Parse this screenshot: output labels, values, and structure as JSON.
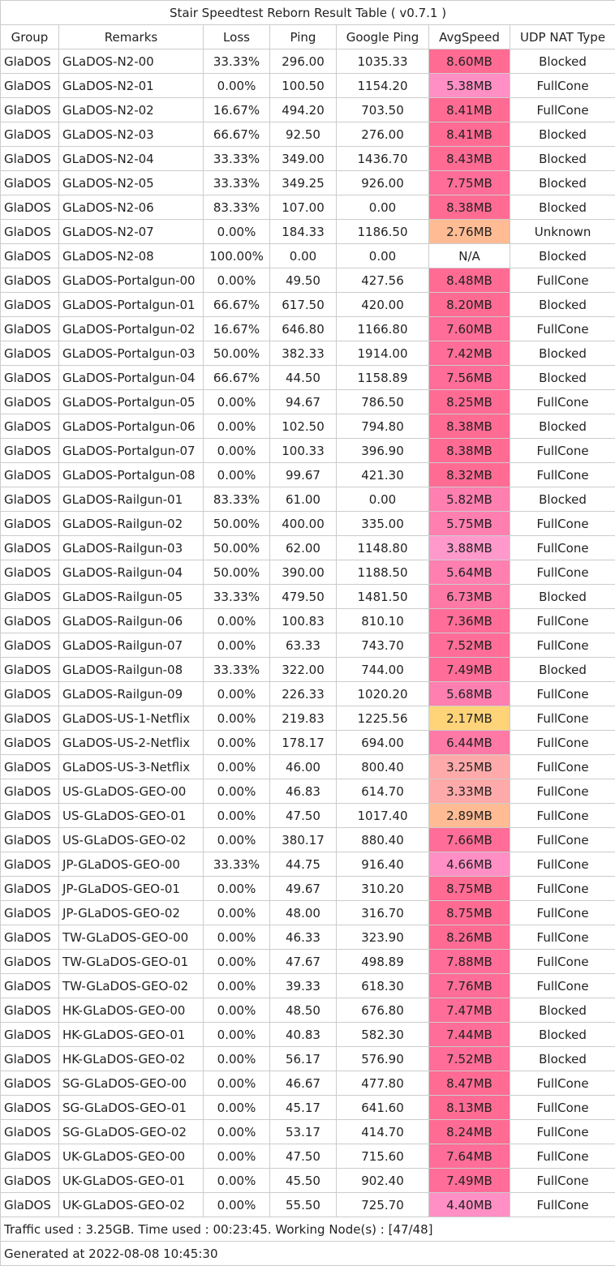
{
  "title": "Stair Speedtest Reborn Result Table ( v0.7.1 )",
  "columns": [
    "Group",
    "Remarks",
    "Loss",
    "Ping",
    "Google Ping",
    "AvgSpeed",
    "UDP NAT Type"
  ],
  "rows": [
    {
      "group": "GlaDOS",
      "remarks": "GLaDOS-N2-00",
      "loss": "33.33%",
      "ping": "296.00",
      "google_ping": "1035.33",
      "avg_speed": "8.60MB",
      "speed_color": "#ff6b93",
      "nat": "Blocked"
    },
    {
      "group": "GlaDOS",
      "remarks": "GLaDOS-N2-01",
      "loss": "0.00%",
      "ping": "100.50",
      "google_ping": "1154.20",
      "avg_speed": "5.38MB",
      "speed_color": "#ff8fc4",
      "nat": "FullCone"
    },
    {
      "group": "GlaDOS",
      "remarks": "GLaDOS-N2-02",
      "loss": "16.67%",
      "ping": "494.20",
      "google_ping": "703.50",
      "avg_speed": "8.41MB",
      "speed_color": "#ff6b93",
      "nat": "FullCone"
    },
    {
      "group": "GlaDOS",
      "remarks": "GLaDOS-N2-03",
      "loss": "66.67%",
      "ping": "92.50",
      "google_ping": "276.00",
      "avg_speed": "8.41MB",
      "speed_color": "#ff6b93",
      "nat": "Blocked"
    },
    {
      "group": "GlaDOS",
      "remarks": "GLaDOS-N2-04",
      "loss": "33.33%",
      "ping": "349.00",
      "google_ping": "1436.70",
      "avg_speed": "8.43MB",
      "speed_color": "#ff6b93",
      "nat": "Blocked"
    },
    {
      "group": "GlaDOS",
      "remarks": "GLaDOS-N2-05",
      "loss": "33.33%",
      "ping": "349.25",
      "google_ping": "926.00",
      "avg_speed": "7.75MB",
      "speed_color": "#ff6d98",
      "nat": "Blocked"
    },
    {
      "group": "GlaDOS",
      "remarks": "GLaDOS-N2-06",
      "loss": "83.33%",
      "ping": "107.00",
      "google_ping": "0.00",
      "avg_speed": "8.38MB",
      "speed_color": "#ff6b93",
      "nat": "Blocked"
    },
    {
      "group": "GlaDOS",
      "remarks": "GLaDOS-N2-07",
      "loss": "0.00%",
      "ping": "184.33",
      "google_ping": "1186.50",
      "avg_speed": "2.76MB",
      "speed_color": "#ffbb94",
      "nat": "Unknown"
    },
    {
      "group": "GlaDOS",
      "remarks": "GLaDOS-N2-08",
      "loss": "100.00%",
      "ping": "0.00",
      "google_ping": "0.00",
      "avg_speed": "N/A",
      "speed_color": "#ffffff",
      "nat": "Blocked"
    },
    {
      "group": "GlaDOS",
      "remarks": "GLaDOS-Portalgun-00",
      "loss": "0.00%",
      "ping": "49.50",
      "google_ping": "427.56",
      "avg_speed": "8.48MB",
      "speed_color": "#ff6b93",
      "nat": "FullCone"
    },
    {
      "group": "GlaDOS",
      "remarks": "GLaDOS-Portalgun-01",
      "loss": "66.67%",
      "ping": "617.50",
      "google_ping": "420.00",
      "avg_speed": "8.20MB",
      "speed_color": "#ff6b93",
      "nat": "Blocked"
    },
    {
      "group": "GlaDOS",
      "remarks": "GLaDOS-Portalgun-02",
      "loss": "16.67%",
      "ping": "646.80",
      "google_ping": "1166.80",
      "avg_speed": "7.60MB",
      "speed_color": "#ff6d98",
      "nat": "FullCone"
    },
    {
      "group": "GlaDOS",
      "remarks": "GLaDOS-Portalgun-03",
      "loss": "50.00%",
      "ping": "382.33",
      "google_ping": "1914.00",
      "avg_speed": "7.42MB",
      "speed_color": "#ff6d98",
      "nat": "Blocked"
    },
    {
      "group": "GlaDOS",
      "remarks": "GLaDOS-Portalgun-04",
      "loss": "66.67%",
      "ping": "44.50",
      "google_ping": "1158.89",
      "avg_speed": "7.56MB",
      "speed_color": "#ff6d98",
      "nat": "Blocked"
    },
    {
      "group": "GlaDOS",
      "remarks": "GLaDOS-Portalgun-05",
      "loss": "0.00%",
      "ping": "94.67",
      "google_ping": "786.50",
      "avg_speed": "8.25MB",
      "speed_color": "#ff6b93",
      "nat": "FullCone"
    },
    {
      "group": "GlaDOS",
      "remarks": "GLaDOS-Portalgun-06",
      "loss": "0.00%",
      "ping": "102.50",
      "google_ping": "794.80",
      "avg_speed": "8.38MB",
      "speed_color": "#ff6b93",
      "nat": "Blocked"
    },
    {
      "group": "GlaDOS",
      "remarks": "GLaDOS-Portalgun-07",
      "loss": "0.00%",
      "ping": "100.33",
      "google_ping": "396.90",
      "avg_speed": "8.38MB",
      "speed_color": "#ff6b93",
      "nat": "FullCone"
    },
    {
      "group": "GlaDOS",
      "remarks": "GLaDOS-Portalgun-08",
      "loss": "0.00%",
      "ping": "99.67",
      "google_ping": "421.30",
      "avg_speed": "8.32MB",
      "speed_color": "#ff6b93",
      "nat": "FullCone"
    },
    {
      "group": "GlaDOS",
      "remarks": "GLaDOS-Railgun-01",
      "loss": "83.33%",
      "ping": "61.00",
      "google_ping": "0.00",
      "avg_speed": "5.82MB",
      "speed_color": "#ff7fb0",
      "nat": "Blocked"
    },
    {
      "group": "GlaDOS",
      "remarks": "GLaDOS-Railgun-02",
      "loss": "50.00%",
      "ping": "400.00",
      "google_ping": "335.00",
      "avg_speed": "5.75MB",
      "speed_color": "#ff7fb0",
      "nat": "FullCone"
    },
    {
      "group": "GlaDOS",
      "remarks": "GLaDOS-Railgun-03",
      "loss": "50.00%",
      "ping": "62.00",
      "google_ping": "1148.80",
      "avg_speed": "3.88MB",
      "speed_color": "#ff99cc",
      "nat": "FullCone"
    },
    {
      "group": "GlaDOS",
      "remarks": "GLaDOS-Railgun-04",
      "loss": "50.00%",
      "ping": "390.00",
      "google_ping": "1188.50",
      "avg_speed": "5.64MB",
      "speed_color": "#ff7fb0",
      "nat": "FullCone"
    },
    {
      "group": "GlaDOS",
      "remarks": "GLaDOS-Railgun-05",
      "loss": "33.33%",
      "ping": "479.50",
      "google_ping": "1481.50",
      "avg_speed": "6.73MB",
      "speed_color": "#ff79a6",
      "nat": "Blocked"
    },
    {
      "group": "GlaDOS",
      "remarks": "GLaDOS-Railgun-06",
      "loss": "0.00%",
      "ping": "100.83",
      "google_ping": "810.10",
      "avg_speed": "7.36MB",
      "speed_color": "#ff6d98",
      "nat": "FullCone"
    },
    {
      "group": "GlaDOS",
      "remarks": "GLaDOS-Railgun-07",
      "loss": "0.00%",
      "ping": "63.33",
      "google_ping": "743.70",
      "avg_speed": "7.52MB",
      "speed_color": "#ff6d98",
      "nat": "FullCone"
    },
    {
      "group": "GlaDOS",
      "remarks": "GLaDOS-Railgun-08",
      "loss": "33.33%",
      "ping": "322.00",
      "google_ping": "744.00",
      "avg_speed": "7.49MB",
      "speed_color": "#ff6d98",
      "nat": "Blocked"
    },
    {
      "group": "GlaDOS",
      "remarks": "GLaDOS-Railgun-09",
      "loss": "0.00%",
      "ping": "226.33",
      "google_ping": "1020.20",
      "avg_speed": "5.68MB",
      "speed_color": "#ff7fb0",
      "nat": "FullCone"
    },
    {
      "group": "GlaDOS",
      "remarks": "GLaDOS-US-1-Netflix",
      "loss": "0.00%",
      "ping": "219.83",
      "google_ping": "1225.56",
      "avg_speed": "2.17MB",
      "speed_color": "#ffd479",
      "nat": "FullCone"
    },
    {
      "group": "GlaDOS",
      "remarks": "GLaDOS-US-2-Netflix",
      "loss": "0.00%",
      "ping": "178.17",
      "google_ping": "694.00",
      "avg_speed": "6.44MB",
      "speed_color": "#ff79a6",
      "nat": "FullCone"
    },
    {
      "group": "GlaDOS",
      "remarks": "GLaDOS-US-3-Netflix",
      "loss": "0.00%",
      "ping": "46.00",
      "google_ping": "800.40",
      "avg_speed": "3.25MB",
      "speed_color": "#ffaaaa",
      "nat": "FullCone"
    },
    {
      "group": "GlaDOS",
      "remarks": "US-GLaDOS-GEO-00",
      "loss": "0.00%",
      "ping": "46.83",
      "google_ping": "614.70",
      "avg_speed": "3.33MB",
      "speed_color": "#ffaaaa",
      "nat": "FullCone"
    },
    {
      "group": "GlaDOS",
      "remarks": "US-GLaDOS-GEO-01",
      "loss": "0.00%",
      "ping": "47.50",
      "google_ping": "1017.40",
      "avg_speed": "2.89MB",
      "speed_color": "#ffbb94",
      "nat": "FullCone"
    },
    {
      "group": "GlaDOS",
      "remarks": "US-GLaDOS-GEO-02",
      "loss": "0.00%",
      "ping": "380.17",
      "google_ping": "880.40",
      "avg_speed": "7.66MB",
      "speed_color": "#ff6d98",
      "nat": "FullCone"
    },
    {
      "group": "GlaDOS",
      "remarks": "JP-GLaDOS-GEO-00",
      "loss": "33.33%",
      "ping": "44.75",
      "google_ping": "916.40",
      "avg_speed": "4.66MB",
      "speed_color": "#ff8fc4",
      "nat": "FullCone"
    },
    {
      "group": "GlaDOS",
      "remarks": "JP-GLaDOS-GEO-01",
      "loss": "0.00%",
      "ping": "49.67",
      "google_ping": "310.20",
      "avg_speed": "8.75MB",
      "speed_color": "#ff6b93",
      "nat": "FullCone"
    },
    {
      "group": "GlaDOS",
      "remarks": "JP-GLaDOS-GEO-02",
      "loss": "0.00%",
      "ping": "48.00",
      "google_ping": "316.70",
      "avg_speed": "8.75MB",
      "speed_color": "#ff6b93",
      "nat": "FullCone"
    },
    {
      "group": "GlaDOS",
      "remarks": "TW-GLaDOS-GEO-00",
      "loss": "0.00%",
      "ping": "46.33",
      "google_ping": "323.90",
      "avg_speed": "8.26MB",
      "speed_color": "#ff6b93",
      "nat": "FullCone"
    },
    {
      "group": "GlaDOS",
      "remarks": "TW-GLaDOS-GEO-01",
      "loss": "0.00%",
      "ping": "47.67",
      "google_ping": "498.89",
      "avg_speed": "7.88MB",
      "speed_color": "#ff6d98",
      "nat": "FullCone"
    },
    {
      "group": "GlaDOS",
      "remarks": "TW-GLaDOS-GEO-02",
      "loss": "0.00%",
      "ping": "39.33",
      "google_ping": "618.30",
      "avg_speed": "7.76MB",
      "speed_color": "#ff6d98",
      "nat": "FullCone"
    },
    {
      "group": "GlaDOS",
      "remarks": "HK-GLaDOS-GEO-00",
      "loss": "0.00%",
      "ping": "48.50",
      "google_ping": "676.80",
      "avg_speed": "7.47MB",
      "speed_color": "#ff6d98",
      "nat": "Blocked"
    },
    {
      "group": "GlaDOS",
      "remarks": "HK-GLaDOS-GEO-01",
      "loss": "0.00%",
      "ping": "40.83",
      "google_ping": "582.30",
      "avg_speed": "7.44MB",
      "speed_color": "#ff6d98",
      "nat": "Blocked"
    },
    {
      "group": "GlaDOS",
      "remarks": "HK-GLaDOS-GEO-02",
      "loss": "0.00%",
      "ping": "56.17",
      "google_ping": "576.90",
      "avg_speed": "7.52MB",
      "speed_color": "#ff6d98",
      "nat": "Blocked"
    },
    {
      "group": "GlaDOS",
      "remarks": "SG-GLaDOS-GEO-00",
      "loss": "0.00%",
      "ping": "46.67",
      "google_ping": "477.80",
      "avg_speed": "8.47MB",
      "speed_color": "#ff6b93",
      "nat": "FullCone"
    },
    {
      "group": "GlaDOS",
      "remarks": "SG-GLaDOS-GEO-01",
      "loss": "0.00%",
      "ping": "45.17",
      "google_ping": "641.60",
      "avg_speed": "8.13MB",
      "speed_color": "#ff6b93",
      "nat": "FullCone"
    },
    {
      "group": "GlaDOS",
      "remarks": "SG-GLaDOS-GEO-02",
      "loss": "0.00%",
      "ping": "53.17",
      "google_ping": "414.70",
      "avg_speed": "8.24MB",
      "speed_color": "#ff6b93",
      "nat": "FullCone"
    },
    {
      "group": "GlaDOS",
      "remarks": "UK-GLaDOS-GEO-00",
      "loss": "0.00%",
      "ping": "47.50",
      "google_ping": "715.60",
      "avg_speed": "7.64MB",
      "speed_color": "#ff6d98",
      "nat": "FullCone"
    },
    {
      "group": "GlaDOS",
      "remarks": "UK-GLaDOS-GEO-01",
      "loss": "0.00%",
      "ping": "45.50",
      "google_ping": "902.40",
      "avg_speed": "7.49MB",
      "speed_color": "#ff6d98",
      "nat": "FullCone"
    },
    {
      "group": "GlaDOS",
      "remarks": "UK-GLaDOS-GEO-02",
      "loss": "0.00%",
      "ping": "55.50",
      "google_ping": "725.70",
      "avg_speed": "4.40MB",
      "speed_color": "#ff8fc4",
      "nat": "FullCone"
    }
  ],
  "footer": {
    "traffic": "Traffic used : 3.25GB. Time used : 00:23:45. Working Node(s) : [47/48]",
    "generated": "Generated at 2022-08-08 10:45:30"
  }
}
